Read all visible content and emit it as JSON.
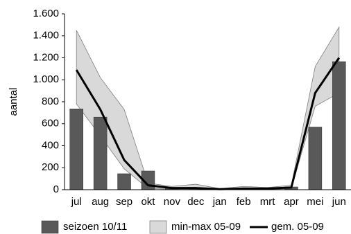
{
  "chart_data": {
    "type": "bar",
    "ylabel": "aantal",
    "categories": [
      "jul",
      "aug",
      "sep",
      "okt",
      "nov",
      "dec",
      "jan",
      "feb",
      "mrt",
      "apr",
      "mei",
      "jun"
    ],
    "ylim": [
      0,
      1600
    ],
    "yticks": [
      0,
      200,
      400,
      600,
      800,
      {
        "value": 1000,
        "label": "1.000"
      },
      {
        "value": 1200,
        "label": "1.200"
      },
      {
        "value": 1400,
        "label": "1.400"
      },
      {
        "value": 1600,
        "label": "1.600"
      }
    ],
    "series": [
      {
        "name": "seizoen 10/11",
        "type": "bar",
        "color": "#595959",
        "values": [
          735,
          660,
          145,
          170,
          20,
          10,
          5,
          10,
          10,
          25,
          570,
          1165
        ]
      },
      {
        "name": "min-max 05-09",
        "type": "band",
        "color": "#d9d9d9",
        "low": [
          780,
          490,
          190,
          10,
          5,
          5,
          0,
          0,
          0,
          10,
          760,
          880
        ],
        "high": [
          1450,
          1020,
          730,
          60,
          30,
          50,
          10,
          30,
          20,
          40,
          1120,
          1480
        ]
      },
      {
        "name": "gem. 05-09",
        "type": "line",
        "color": "#000000",
        "values": [
          1090,
          730,
          270,
          40,
          15,
          15,
          5,
          10,
          10,
          20,
          880,
          1200
        ]
      }
    ]
  }
}
